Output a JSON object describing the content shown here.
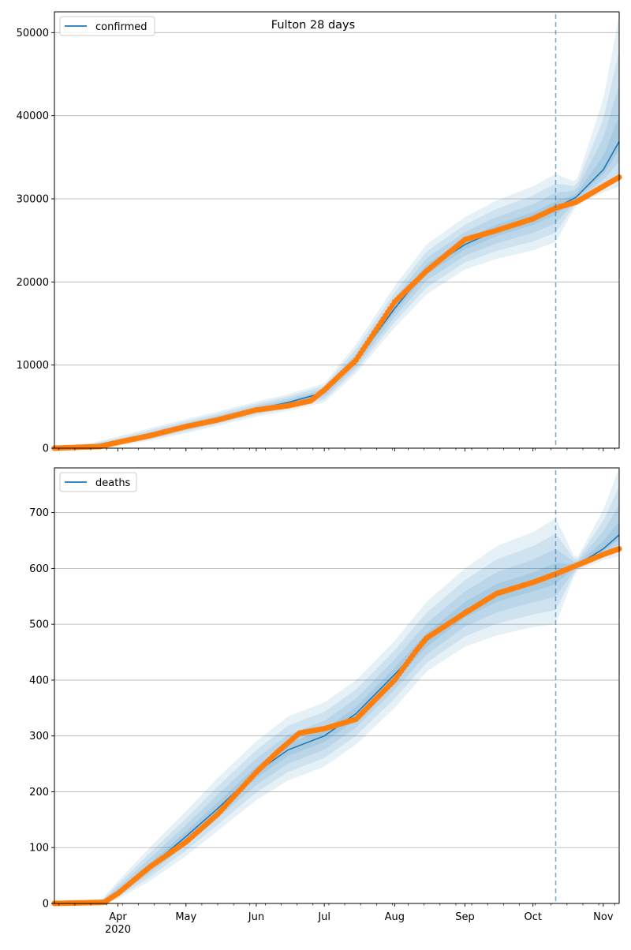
{
  "figure": {
    "title": "Fulton 28 days"
  },
  "chart_data": [
    {
      "type": "line",
      "title": "Fulton 28 days",
      "xlabel": "",
      "ylabel": "",
      "x_axis": {
        "type": "date",
        "range": [
          "2020-03-04",
          "2020-11-08"
        ],
        "tick_labels": [
          {
            "date": "2020-04-01",
            "label": "Apr",
            "sublabel": "2020"
          },
          {
            "date": "2020-05-01",
            "label": "May"
          },
          {
            "date": "2020-06-01",
            "label": "Jun"
          },
          {
            "date": "2020-07-01",
            "label": "Jul"
          },
          {
            "date": "2020-08-01",
            "label": "Aug"
          },
          {
            "date": "2020-09-01",
            "label": "Sep"
          },
          {
            "date": "2020-10-01",
            "label": "Oct"
          },
          {
            "date": "2020-11-01",
            "label": "Nov"
          }
        ]
      },
      "forecast_start": "2020-10-11",
      "grid": "horizontal",
      "legend_position": "top-left",
      "colors": {
        "model": "#1f77b4",
        "observed": "#ff7f0e",
        "band": "#1f77b4"
      },
      "panels": [
        {
          "name": "confirmed",
          "legend": "confirmed",
          "ylim": [
            0,
            52500
          ],
          "yticks": [
            0,
            10000,
            20000,
            30000,
            40000,
            50000
          ],
          "model": [
            [
              "2020-03-04",
              0,
              0,
              0
            ],
            [
              "2020-03-20",
              200,
              0,
              600
            ],
            [
              "2020-04-01",
              700,
              300,
              1400
            ],
            [
              "2020-04-15",
              1500,
              900,
              2400
            ],
            [
              "2020-05-01",
              2600,
              1800,
              3500
            ],
            [
              "2020-05-15",
              3500,
              2700,
              4400
            ],
            [
              "2020-06-01",
              4700,
              3800,
              5600
            ],
            [
              "2020-06-15",
              5500,
              4500,
              6500
            ],
            [
              "2020-07-01",
              6700,
              5500,
              7800
            ],
            [
              "2020-07-15",
              10500,
              9000,
              12500
            ],
            [
              "2020-08-01",
              16800,
              14500,
              19500
            ],
            [
              "2020-08-15",
              21500,
              18500,
              24500
            ],
            [
              "2020-09-01",
              24500,
              21500,
              27800
            ],
            [
              "2020-09-15",
              26200,
              22800,
              29800
            ],
            [
              "2020-10-01",
              27600,
              23800,
              31500
            ],
            [
              "2020-10-11",
              28900,
              24800,
              33000
            ],
            [
              "2020-10-20",
              30200,
              29200,
              32000
            ],
            [
              "2020-11-01",
              33500,
              30800,
              42000
            ],
            [
              "2020-11-08",
              36900,
              31500,
              52000
            ]
          ],
          "observed": [
            [
              "2020-03-04",
              0
            ],
            [
              "2020-03-24",
              200
            ],
            [
              "2020-04-01",
              700
            ],
            [
              "2020-04-15",
              1500
            ],
            [
              "2020-05-01",
              2600
            ],
            [
              "2020-05-15",
              3400
            ],
            [
              "2020-06-01",
              4600
            ],
            [
              "2020-06-15",
              5100
            ],
            [
              "2020-06-25",
              5700
            ],
            [
              "2020-07-01",
              7000
            ],
            [
              "2020-07-15",
              10600
            ],
            [
              "2020-08-01",
              17600
            ],
            [
              "2020-08-15",
              21300
            ],
            [
              "2020-09-01",
              25100
            ],
            [
              "2020-09-15",
              26200
            ],
            [
              "2020-10-01",
              27600
            ],
            [
              "2020-10-11",
              28900
            ],
            [
              "2020-10-20",
              29600
            ],
            [
              "2020-11-01",
              31500
            ],
            [
              "2020-11-08",
              32600
            ]
          ]
        },
        {
          "name": "deaths",
          "legend": "deaths",
          "ylim": [
            0,
            780
          ],
          "yticks": [
            0,
            100,
            200,
            300,
            400,
            500,
            600,
            700
          ],
          "model": [
            [
              "2020-03-04",
              0,
              0,
              0
            ],
            [
              "2020-03-25",
              2,
              0,
              8
            ],
            [
              "2020-04-01",
              20,
              8,
              40
            ],
            [
              "2020-04-15",
              65,
              40,
              100
            ],
            [
              "2020-05-01",
              120,
              85,
              165
            ],
            [
              "2020-05-15",
              170,
              130,
              225
            ],
            [
              "2020-06-01",
              235,
              185,
              290
            ],
            [
              "2020-06-15",
              275,
              220,
              335
            ],
            [
              "2020-07-01",
              300,
              245,
              360
            ],
            [
              "2020-07-15",
              340,
              285,
              400
            ],
            [
              "2020-08-01",
              410,
              350,
              470
            ],
            [
              "2020-08-15",
              470,
              415,
              540
            ],
            [
              "2020-09-01",
              525,
              460,
              600
            ],
            [
              "2020-09-15",
              555,
              480,
              640
            ],
            [
              "2020-10-01",
              575,
              495,
              665
            ],
            [
              "2020-10-11",
              590,
              500,
              690
            ],
            [
              "2020-10-20",
              605,
              595,
              615
            ],
            [
              "2020-11-01",
              635,
              615,
              705
            ],
            [
              "2020-11-08",
              660,
              622,
              780
            ]
          ],
          "observed": [
            [
              "2020-03-04",
              0
            ],
            [
              "2020-03-26",
              2
            ],
            [
              "2020-04-01",
              18
            ],
            [
              "2020-04-15",
              65
            ],
            [
              "2020-05-01",
              110
            ],
            [
              "2020-05-15",
              160
            ],
            [
              "2020-06-01",
              235
            ],
            [
              "2020-06-10",
              270
            ],
            [
              "2020-06-20",
              305
            ],
            [
              "2020-07-01",
              313
            ],
            [
              "2020-07-15",
              330
            ],
            [
              "2020-08-01",
              400
            ],
            [
              "2020-08-10",
              450
            ],
            [
              "2020-08-15",
              475
            ],
            [
              "2020-09-01",
              520
            ],
            [
              "2020-09-15",
              555
            ],
            [
              "2020-10-01",
              575
            ],
            [
              "2020-10-11",
              590
            ],
            [
              "2020-10-20",
              605
            ],
            [
              "2020-11-01",
              625
            ],
            [
              "2020-11-08",
              635
            ]
          ]
        }
      ]
    }
  ]
}
